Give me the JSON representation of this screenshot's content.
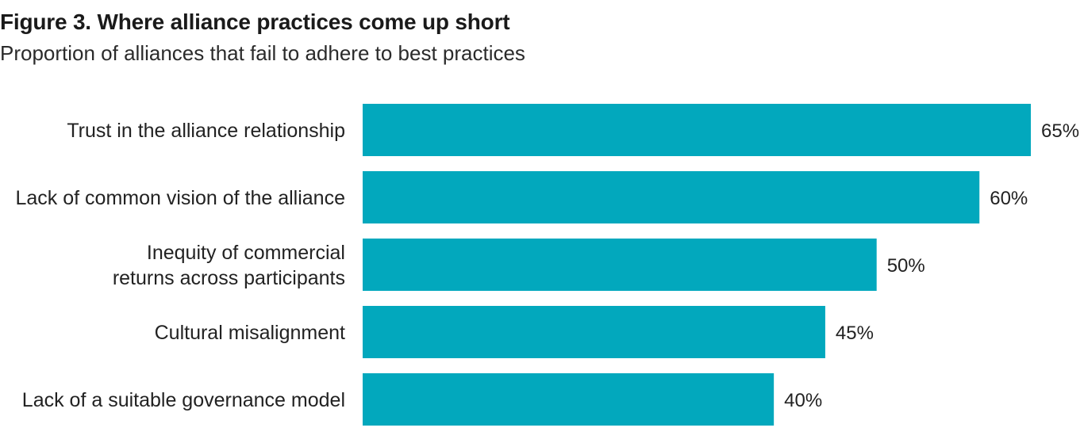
{
  "figure": {
    "title": "Figure 3. Where alliance practices come up short",
    "subtitle": "Proportion of alliances that fail to adhere to best practices"
  },
  "colors": {
    "bar": "#02a8bd",
    "text": "#222222"
  },
  "chart_data": {
    "type": "bar",
    "orientation": "horizontal",
    "categories": [
      [
        "Trust in the alliance relationship"
      ],
      [
        "Lack of common vision of the alliance"
      ],
      [
        "Inequity of commercial",
        "returns across participants"
      ],
      [
        "Cultural misalignment"
      ],
      [
        "Lack of a suitable governance model"
      ]
    ],
    "values": [
      65,
      60,
      50,
      45,
      40
    ],
    "value_labels": [
      "65%",
      "60%",
      "50%",
      "45%",
      "40%"
    ],
    "unit": "%",
    "xlim": [
      0,
      65
    ],
    "grid": false,
    "legend": "none"
  }
}
